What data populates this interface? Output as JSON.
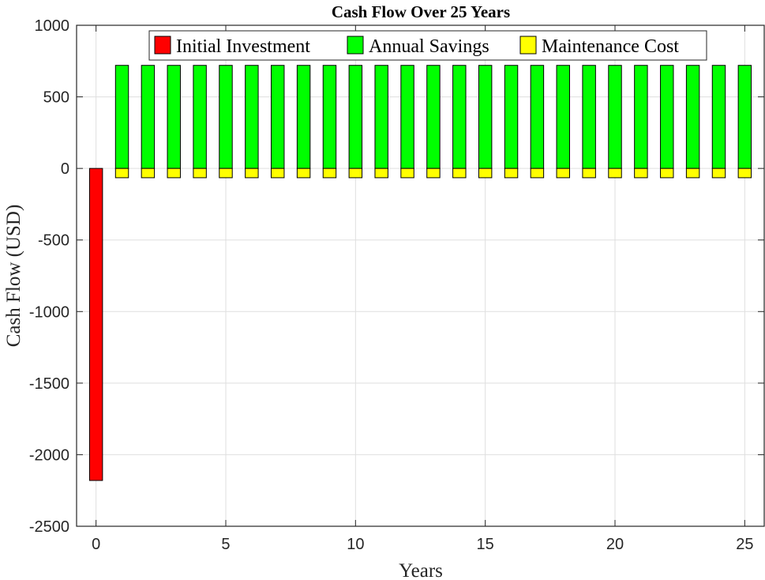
{
  "chart_data": {
    "type": "bar",
    "title": "Cash Flow Over 25 Years",
    "xlabel": "Years",
    "ylabel": "Cash Flow (USD)",
    "xlim": [
      -0.75,
      25.75
    ],
    "ylim": [
      -2500,
      1000
    ],
    "xticks": [
      0,
      5,
      10,
      15,
      20,
      25
    ],
    "xtick_labels": [
      "0",
      "5",
      "10",
      "15",
      "20",
      "25"
    ],
    "yticks": [
      1000,
      500,
      0,
      -500,
      -1000,
      -1500,
      -2000,
      -2500
    ],
    "ytick_labels": [
      "1000",
      "500",
      "0",
      "-500",
      "-1000",
      "-1500",
      "-2000",
      "-2500"
    ],
    "grid": true,
    "legend_position": "top",
    "bar_width": 0.5,
    "series": [
      {
        "name": "Initial Investment",
        "color": "#ff0000",
        "points": [
          {
            "x": 0,
            "value": -2180
          }
        ]
      },
      {
        "name": "Annual Savings",
        "color": "#00ff00",
        "points": [
          {
            "x": 1,
            "value": 720
          },
          {
            "x": 2,
            "value": 720
          },
          {
            "x": 3,
            "value": 720
          },
          {
            "x": 4,
            "value": 720
          },
          {
            "x": 5,
            "value": 720
          },
          {
            "x": 6,
            "value": 720
          },
          {
            "x": 7,
            "value": 720
          },
          {
            "x": 8,
            "value": 720
          },
          {
            "x": 9,
            "value": 720
          },
          {
            "x": 10,
            "value": 720
          },
          {
            "x": 11,
            "value": 720
          },
          {
            "x": 12,
            "value": 720
          },
          {
            "x": 13,
            "value": 720
          },
          {
            "x": 14,
            "value": 720
          },
          {
            "x": 15,
            "value": 720
          },
          {
            "x": 16,
            "value": 720
          },
          {
            "x": 17,
            "value": 720
          },
          {
            "x": 18,
            "value": 720
          },
          {
            "x": 19,
            "value": 720
          },
          {
            "x": 20,
            "value": 720
          },
          {
            "x": 21,
            "value": 720
          },
          {
            "x": 22,
            "value": 720
          },
          {
            "x": 23,
            "value": 720
          },
          {
            "x": 24,
            "value": 720
          },
          {
            "x": 25,
            "value": 720
          }
        ]
      },
      {
        "name": "Maintenance Cost",
        "color": "#ffff00",
        "points": [
          {
            "x": 1,
            "value": -65
          },
          {
            "x": 2,
            "value": -65
          },
          {
            "x": 3,
            "value": -65
          },
          {
            "x": 4,
            "value": -65
          },
          {
            "x": 5,
            "value": -65
          },
          {
            "x": 6,
            "value": -65
          },
          {
            "x": 7,
            "value": -65
          },
          {
            "x": 8,
            "value": -65
          },
          {
            "x": 9,
            "value": -65
          },
          {
            "x": 10,
            "value": -65
          },
          {
            "x": 11,
            "value": -65
          },
          {
            "x": 12,
            "value": -65
          },
          {
            "x": 13,
            "value": -65
          },
          {
            "x": 14,
            "value": -65
          },
          {
            "x": 15,
            "value": -65
          },
          {
            "x": 16,
            "value": -65
          },
          {
            "x": 17,
            "value": -65
          },
          {
            "x": 18,
            "value": -65
          },
          {
            "x": 19,
            "value": -65
          },
          {
            "x": 20,
            "value": -65
          },
          {
            "x": 21,
            "value": -65
          },
          {
            "x": 22,
            "value": -65
          },
          {
            "x": 23,
            "value": -65
          },
          {
            "x": 24,
            "value": -65
          },
          {
            "x": 25,
            "value": -65
          }
        ]
      }
    ]
  }
}
